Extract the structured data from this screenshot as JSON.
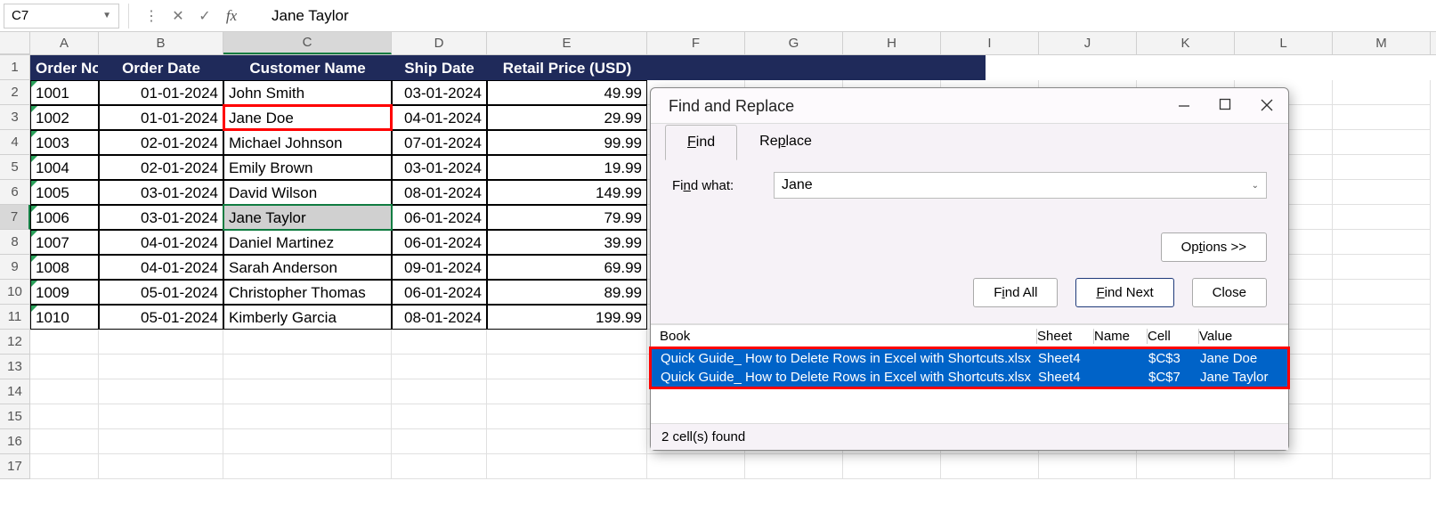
{
  "formula_bar": {
    "cell_ref": "C7",
    "value": "Jane Taylor"
  },
  "columns": {
    "letters": [
      "A",
      "B",
      "C",
      "D",
      "E",
      "F",
      "G",
      "H",
      "I",
      "J",
      "K",
      "L",
      "M"
    ],
    "widths": [
      "wA",
      "wB",
      "wC",
      "wD",
      "wE",
      "wOther",
      "wOther",
      "wOther",
      "wOther",
      "wOther",
      "wOther",
      "wOther",
      "wOther"
    ]
  },
  "headers": [
    "Order No",
    "Order Date",
    "Customer Name",
    "Ship Date",
    "Retail Price (USD)"
  ],
  "rows": [
    {
      "n": "1001",
      "od": "01-01-2024",
      "cn": "John Smith",
      "sd": "03-01-2024",
      "rp": "49.99"
    },
    {
      "n": "1002",
      "od": "01-01-2024",
      "cn": "Jane Doe",
      "sd": "04-01-2024",
      "rp": "29.99",
      "hl": true
    },
    {
      "n": "1003",
      "od": "02-01-2024",
      "cn": "Michael Johnson",
      "sd": "07-01-2024",
      "rp": "99.99"
    },
    {
      "n": "1004",
      "od": "02-01-2024",
      "cn": "Emily Brown",
      "sd": "03-01-2024",
      "rp": "19.99"
    },
    {
      "n": "1005",
      "od": "03-01-2024",
      "cn": "David Wilson",
      "sd": "08-01-2024",
      "rp": "149.99"
    },
    {
      "n": "1006",
      "od": "03-01-2024",
      "cn": "Jane Taylor",
      "sd": "06-01-2024",
      "rp": "79.99",
      "hl": true,
      "sel": true
    },
    {
      "n": "1007",
      "od": "04-01-2024",
      "cn": "Daniel Martinez",
      "sd": "06-01-2024",
      "rp": "39.99"
    },
    {
      "n": "1008",
      "od": "04-01-2024",
      "cn": "Sarah Anderson",
      "sd": "09-01-2024",
      "rp": "69.99"
    },
    {
      "n": "1009",
      "od": "05-01-2024",
      "cn": "Christopher Thomas",
      "sd": "06-01-2024",
      "rp": "89.99"
    },
    {
      "n": "1010",
      "od": "05-01-2024",
      "cn": "Kimberly Garcia",
      "sd": "08-01-2024",
      "rp": "199.99"
    }
  ],
  "empty_rows": [
    12,
    13,
    14,
    15,
    16,
    17
  ],
  "dialog": {
    "title": "Find and Replace",
    "tab_find": "Find",
    "tab_replace": "Replace",
    "find_what_label": "Find what:",
    "find_value": "Jane",
    "options_btn": "Options >>",
    "find_all_btn": "Find All",
    "find_next_btn": "Find Next",
    "close_btn": "Close",
    "res_headers": {
      "book": "Book",
      "sheet": "Sheet",
      "name": "Name",
      "cell": "Cell",
      "value": "Value"
    },
    "results": [
      {
        "book": "Quick Guide_ How to Delete Rows in Excel with Shortcuts.xlsx",
        "sheet": "Sheet4",
        "name": "",
        "cell": "$C$3",
        "value": "Jane Doe"
      },
      {
        "book": "Quick Guide_ How to Delete Rows in Excel with Shortcuts.xlsx",
        "sheet": "Sheet4",
        "name": "",
        "cell": "$C$7",
        "value": "Jane Taylor"
      }
    ],
    "status": "2 cell(s) found"
  },
  "colors": {
    "header_bg": "#1f2a5a",
    "highlight": "#ff0000",
    "selection_green": "#107c41",
    "result_row_bg": "#0063c8"
  }
}
